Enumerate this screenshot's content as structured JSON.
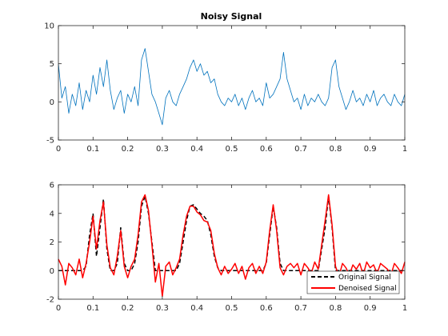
{
  "chart_data": [
    {
      "type": "line",
      "title": "Noisy Signal",
      "xlabel": "",
      "ylabel": "",
      "xlim": [
        0,
        1
      ],
      "ylim": [
        -5,
        10
      ],
      "xticks": [
        0,
        0.1,
        0.2,
        0.3,
        0.4,
        0.5,
        0.6,
        0.7,
        0.8,
        0.9,
        1
      ],
      "xtick_labels": [
        "0",
        "0.1",
        "0.2",
        "0.3",
        "0.4",
        "0.5",
        "0.6",
        "0.7",
        "0.8",
        "0.9",
        "1"
      ],
      "yticks": [
        -5,
        0,
        5,
        10
      ],
      "ytick_labels": [
        "-5",
        "0",
        "5",
        "10"
      ],
      "grid": false,
      "series": [
        {
          "color": "#0072BD",
          "x": [
            0,
            0.01,
            0.02,
            0.03,
            0.04,
            0.05,
            0.06,
            0.07,
            0.08,
            0.09,
            0.1,
            0.11,
            0.12,
            0.13,
            0.14,
            0.15,
            0.16,
            0.17,
            0.18,
            0.19,
            0.2,
            0.21,
            0.22,
            0.23,
            0.24,
            0.25,
            0.26,
            0.27,
            0.28,
            0.29,
            0.3,
            0.31,
            0.32,
            0.33,
            0.34,
            0.35,
            0.36,
            0.37,
            0.38,
            0.39,
            0.4,
            0.41,
            0.42,
            0.43,
            0.44,
            0.45,
            0.46,
            0.47,
            0.48,
            0.49,
            0.5,
            0.51,
            0.52,
            0.53,
            0.54,
            0.55,
            0.56,
            0.57,
            0.58,
            0.59,
            0.6,
            0.61,
            0.62,
            0.63,
            0.64,
            0.65,
            0.66,
            0.67,
            0.68,
            0.69,
            0.7,
            0.71,
            0.72,
            0.73,
            0.74,
            0.75,
            0.76,
            0.77,
            0.78,
            0.79,
            0.8,
            0.81,
            0.82,
            0.83,
            0.84,
            0.85,
            0.86,
            0.87,
            0.88,
            0.89,
            0.9,
            0.91,
            0.92,
            0.93,
            0.94,
            0.95,
            0.96,
            0.97,
            0.98,
            0.99,
            1
          ],
          "y": [
            5.0,
            0.5,
            2.0,
            -1.5,
            1.0,
            -0.5,
            2.5,
            -1.0,
            1.5,
            0.0,
            3.5,
            1.0,
            4.5,
            2.0,
            5.5,
            1.5,
            -1.0,
            0.5,
            1.5,
            -1.5,
            1.0,
            0.0,
            2.0,
            -0.5,
            5.5,
            7.0,
            4.0,
            1.0,
            0.0,
            -1.5,
            -3.0,
            0.5,
            1.5,
            0.0,
            -0.5,
            1.0,
            2.0,
            3.0,
            4.5,
            5.5,
            4.0,
            5.0,
            3.5,
            4.0,
            2.5,
            3.0,
            1.0,
            0.0,
            -0.5,
            0.5,
            0.0,
            1.0,
            -0.5,
            0.5,
            -1.0,
            0.5,
            1.5,
            0.0,
            0.5,
            -0.5,
            2.5,
            0.5,
            1.0,
            2.0,
            3.0,
            6.5,
            3.0,
            1.5,
            0.0,
            0.5,
            -1.0,
            1.0,
            -0.5,
            0.5,
            0.0,
            1.0,
            0.0,
            -0.5,
            0.5,
            4.5,
            5.5,
            2.0,
            0.5,
            -1.0,
            0.0,
            1.5,
            0.0,
            0.5,
            -0.5,
            1.0,
            0.0,
            1.5,
            -0.5,
            0.5,
            1.0,
            0.0,
            -0.5,
            1.0,
            0.0,
            -0.5,
            1.0
          ]
        }
      ]
    },
    {
      "type": "line",
      "title": "",
      "xlabel": "",
      "ylabel": "",
      "xlim": [
        0,
        1
      ],
      "ylim": [
        -2,
        6
      ],
      "xticks": [
        0,
        0.1,
        0.2,
        0.3,
        0.4,
        0.5,
        0.6,
        0.7,
        0.8,
        0.9,
        1
      ],
      "xtick_labels": [
        "0",
        "0.1",
        "0.2",
        "0.3",
        "0.4",
        "0.5",
        "0.6",
        "0.7",
        "0.8",
        "0.9",
        "1"
      ],
      "yticks": [
        -2,
        0,
        2,
        4,
        6
      ],
      "ytick_labels": [
        "-2",
        "0",
        "2",
        "4",
        "6"
      ],
      "grid": false,
      "legend_position": "bottom-right",
      "series": [
        {
          "name": "Original Signal",
          "color": "#000000",
          "dashed": true,
          "x": [
            0,
            0.01,
            0.02,
            0.03,
            0.04,
            0.05,
            0.06,
            0.07,
            0.08,
            0.09,
            0.1,
            0.11,
            0.12,
            0.13,
            0.14,
            0.15,
            0.16,
            0.17,
            0.18,
            0.19,
            0.2,
            0.21,
            0.22,
            0.23,
            0.24,
            0.25,
            0.26,
            0.27,
            0.28,
            0.29,
            0.3,
            0.31,
            0.32,
            0.33,
            0.34,
            0.35,
            0.36,
            0.37,
            0.38,
            0.39,
            0.4,
            0.41,
            0.42,
            0.43,
            0.44,
            0.45,
            0.46,
            0.47,
            0.48,
            0.49,
            0.5,
            0.51,
            0.52,
            0.53,
            0.54,
            0.55,
            0.56,
            0.57,
            0.58,
            0.59,
            0.6,
            0.61,
            0.62,
            0.63,
            0.64,
            0.65,
            0.66,
            0.67,
            0.68,
            0.69,
            0.7,
            0.71,
            0.72,
            0.73,
            0.74,
            0.75,
            0.76,
            0.77,
            0.78,
            0.79,
            0.8,
            0.81,
            0.82,
            0.83,
            0.84,
            0.85,
            0.86,
            0.87,
            0.88,
            0.89,
            0.9,
            0.91,
            0.92,
            0.93,
            0.94,
            0.95,
            0.96,
            0.97,
            0.98,
            0.99,
            1
          ],
          "y": [
            0,
            0,
            0,
            0,
            0,
            0,
            0,
            0,
            0.3,
            2.5,
            4.0,
            1.0,
            3.0,
            5.0,
            1.5,
            0,
            0,
            0.5,
            3.0,
            0.5,
            0,
            0,
            0.5,
            2.0,
            4.5,
            5.2,
            4.0,
            2.0,
            0,
            0,
            0,
            0,
            0,
            0,
            0,
            0.5,
            2.0,
            3.5,
            4.5,
            4.6,
            4.3,
            4.0,
            3.8,
            3.5,
            2.5,
            1.0,
            0.2,
            0,
            0,
            0,
            0,
            0,
            0,
            0,
            0,
            0,
            0,
            0,
            0,
            0,
            0.5,
            2.5,
            4.5,
            3.0,
            0.5,
            0,
            0,
            0,
            0,
            0,
            0,
            0,
            0,
            0,
            0,
            0,
            1.5,
            3.0,
            5.2,
            3.0,
            0,
            0,
            0,
            0,
            0,
            0,
            0,
            0,
            0,
            0,
            0,
            0,
            0,
            0,
            0,
            0,
            0,
            0,
            0,
            0,
            0
          ]
        },
        {
          "name": "Denoised Signal",
          "color": "#FF0000",
          "dashed": false,
          "x": [
            0,
            0.01,
            0.02,
            0.03,
            0.04,
            0.05,
            0.06,
            0.07,
            0.08,
            0.09,
            0.1,
            0.11,
            0.12,
            0.13,
            0.14,
            0.15,
            0.16,
            0.17,
            0.18,
            0.19,
            0.2,
            0.21,
            0.22,
            0.23,
            0.24,
            0.25,
            0.26,
            0.27,
            0.28,
            0.29,
            0.3,
            0.31,
            0.32,
            0.33,
            0.34,
            0.35,
            0.36,
            0.37,
            0.38,
            0.39,
            0.4,
            0.41,
            0.42,
            0.43,
            0.44,
            0.45,
            0.46,
            0.47,
            0.48,
            0.49,
            0.5,
            0.51,
            0.52,
            0.53,
            0.54,
            0.55,
            0.56,
            0.57,
            0.58,
            0.59,
            0.6,
            0.61,
            0.62,
            0.63,
            0.64,
            0.65,
            0.66,
            0.67,
            0.68,
            0.69,
            0.7,
            0.71,
            0.72,
            0.73,
            0.74,
            0.75,
            0.76,
            0.77,
            0.78,
            0.79,
            0.8,
            0.81,
            0.82,
            0.83,
            0.84,
            0.85,
            0.86,
            0.87,
            0.88,
            0.89,
            0.9,
            0.91,
            0.92,
            0.93,
            0.94,
            0.95,
            0.96,
            0.97,
            0.98,
            0.99,
            1
          ],
          "y": [
            0.8,
            0.3,
            -1.0,
            0.5,
            0.2,
            -0.3,
            0.8,
            -0.5,
            0.5,
            2.0,
            3.8,
            1.5,
            3.5,
            4.8,
            1.8,
            0.2,
            -0.3,
            1.0,
            2.8,
            0.3,
            -0.5,
            0.3,
            0.8,
            2.5,
            4.8,
            5.3,
            4.2,
            1.8,
            -0.8,
            0.5,
            -1.8,
            0.3,
            0.6,
            -0.3,
            0.2,
            0.8,
            2.5,
            3.8,
            4.5,
            4.5,
            4.1,
            3.9,
            3.5,
            3.4,
            2.8,
            1.2,
            0.2,
            -0.3,
            0.3,
            -0.2,
            0.1,
            0.5,
            -0.2,
            0.3,
            -0.6,
            0.2,
            0.5,
            -0.2,
            0.3,
            -0.2,
            0.6,
            2.8,
            4.6,
            2.8,
            0.2,
            -0.3,
            0.3,
            0.5,
            0.2,
            0.5,
            -0.3,
            0.5,
            0.2,
            -0.2,
            0.6,
            0.1,
            1.8,
            3.5,
            5.3,
            3.2,
            0.3,
            -0.4,
            0.5,
            0.2,
            -0.3,
            0.4,
            0.1,
            0.5,
            -0.3,
            0.6,
            0.2,
            0.4,
            -0.2,
            0.5,
            0.3,
            0.1,
            -0.3,
            0.5,
            0.2,
            -0.2,
            0.6
          ]
        }
      ]
    }
  ]
}
